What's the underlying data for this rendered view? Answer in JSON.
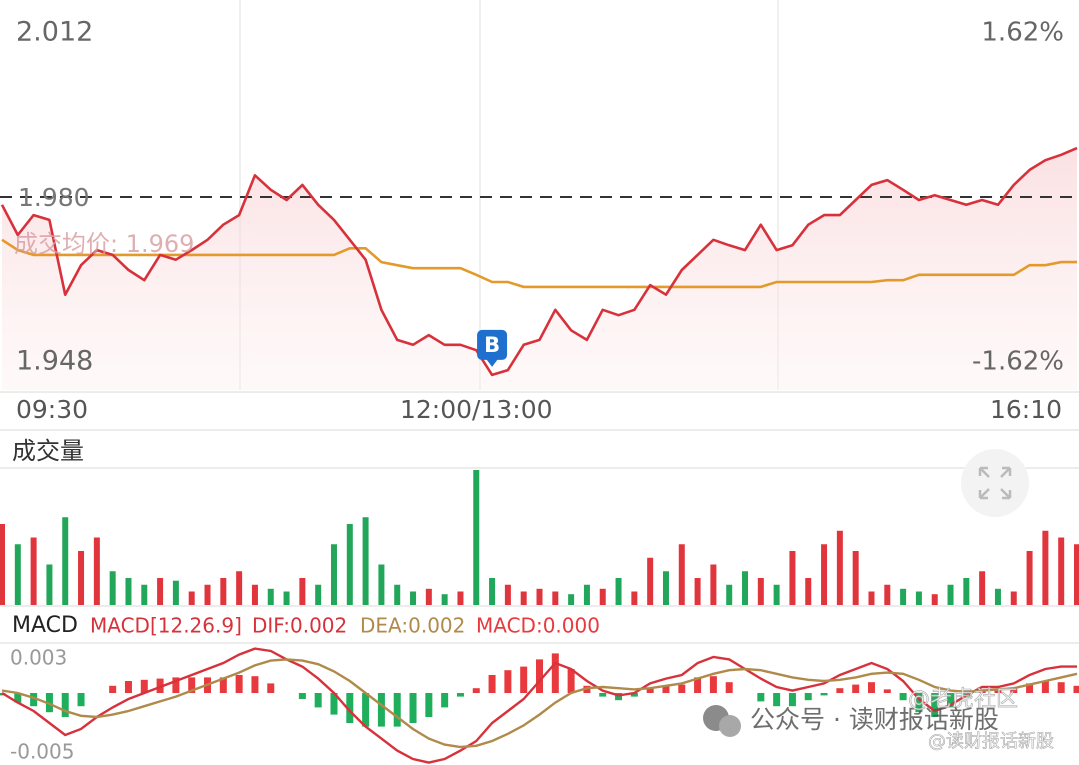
{
  "chart_data": [
    {
      "type": "line",
      "categories": [
        "09:30",
        null,
        null,
        null,
        null,
        null,
        null,
        null,
        null,
        null,
        null,
        null,
        null,
        null,
        null,
        null,
        null,
        null,
        null,
        null,
        null,
        null,
        null,
        null,
        null,
        null,
        null,
        null,
        null,
        null,
        "12:00/13:00",
        null,
        null,
        null,
        null,
        null,
        null,
        null,
        null,
        null,
        null,
        null,
        null,
        null,
        null,
        null,
        null,
        null,
        null,
        null,
        null,
        null,
        null,
        null,
        null,
        null,
        null,
        null,
        null,
        null,
        null,
        null,
        null,
        null,
        null,
        null,
        null,
        null,
        "16:10"
      ],
      "values": [
        1.9787,
        1.9737,
        1.977,
        1.9762,
        1.9638,
        1.9687,
        1.9712,
        1.9704,
        1.9679,
        1.9662,
        1.9704,
        1.9696,
        1.9712,
        1.9729,
        1.9754,
        1.977,
        1.9836,
        1.9812,
        1.9795,
        1.982,
        1.9787,
        1.9762,
        1.9729,
        1.9696,
        1.9613,
        1.9563,
        1.9555,
        1.9571,
        1.9555,
        1.9555,
        1.9546,
        1.9505,
        1.9513,
        1.9555,
        1.9563,
        1.9613,
        1.9579,
        1.9563,
        1.9613,
        1.9604,
        1.9613,
        1.9654,
        1.9638,
        1.9679,
        1.9704,
        1.9729,
        1.972,
        1.9712,
        1.9754,
        1.9712,
        1.972,
        1.9754,
        1.977,
        1.977,
        1.9795,
        1.982,
        1.9828,
        1.9812,
        1.9795,
        1.9803,
        1.9795,
        1.9787,
        1.9795,
        1.9787,
        1.982,
        1.9845,
        1.9861,
        1.987,
        1.9881
      ],
      "color": "#d7323b",
      "ylim": [
        1.948,
        2.012
      ],
      "yticks": [
        2.012,
        1.948
      ],
      "y2lim": [
        -1.62,
        1.62
      ],
      "y2ticks": [
        {
          "value": 1.62,
          "label": "1.62%"
        },
        {
          "value": -1.62,
          "label": "-1.62%"
        }
      ],
      "reference_line": {
        "value": 1.98,
        "label": "1.980"
      },
      "average": {
        "label": "成交均价: 1.969",
        "color": "#e49a2b",
        "values": [
          1.9729,
          1.9712,
          1.9704,
          1.9704,
          1.9704,
          1.9704,
          1.9704,
          1.9704,
          1.9704,
          1.9704,
          1.9704,
          1.9704,
          1.9704,
          1.9704,
          1.9704,
          1.9704,
          1.9704,
          1.9704,
          1.9704,
          1.9704,
          1.9704,
          1.9704,
          1.9715,
          1.9715,
          1.9692,
          1.9687,
          1.9682,
          1.9682,
          1.9682,
          1.9682,
          1.9671,
          1.9659,
          1.9659,
          1.9651,
          1.9651,
          1.9651,
          1.9651,
          1.9651,
          1.9651,
          1.9651,
          1.9651,
          1.9651,
          1.9651,
          1.9651,
          1.9651,
          1.9651,
          1.9651,
          1.9651,
          1.9651,
          1.9659,
          1.9659,
          1.9659,
          1.9659,
          1.9659,
          1.9659,
          1.9659,
          1.9662,
          1.9662,
          1.9671,
          1.9671,
          1.9671,
          1.9671,
          1.9671,
          1.9671,
          1.9671,
          1.9687,
          1.9687,
          1.9692,
          1.9692
        ]
      },
      "annotations": [
        {
          "text": "B",
          "index": 31
        }
      ]
    },
    {
      "type": "bar",
      "title": "成交量",
      "values": [
        60,
        45,
        50,
        30,
        65,
        40,
        50,
        25,
        20,
        15,
        20,
        18,
        10,
        15,
        20,
        25,
        15,
        12,
        10,
        20,
        15,
        45,
        60,
        65,
        30,
        15,
        10,
        12,
        8,
        10,
        100,
        20,
        15,
        10,
        12,
        10,
        8,
        15,
        12,
        20,
        10,
        35,
        25,
        45,
        20,
        30,
        15,
        25,
        20,
        15,
        40,
        20,
        45,
        55,
        40,
        10,
        15,
        12,
        10,
        8,
        15,
        20,
        25,
        12,
        10,
        40,
        55,
        50,
        45
      ],
      "ylim": [
        0,
        100
      ],
      "up_color": "#e0353c",
      "down_color": "#22a65a"
    },
    {
      "type": "macd",
      "title": "MACD",
      "subtitle": "MACD[12.26.9]",
      "ylim": [
        -0.006,
        0.004
      ],
      "yticks": [
        0.003,
        -0.005
      ],
      "series": [
        {
          "name": "DIF:0.002",
          "color": "#d7323b",
          "values": [
            0,
            -0.0008,
            -0.0015,
            -0.0025,
            -0.0035,
            -0.003,
            -0.002,
            -0.0012,
            -0.0005,
            0,
            0.0005,
            0.001,
            0.0015,
            0.002,
            0.0025,
            0.0032,
            0.0037,
            0.0035,
            0.0028,
            0.0022,
            0.0012,
            0,
            -0.0015,
            -0.0028,
            -0.0038,
            -0.0048,
            -0.0055,
            -0.0058,
            -0.0055,
            -0.0048,
            -0.004,
            -0.0025,
            -0.0015,
            -0.0005,
            0.001,
            0.0025,
            0.002,
            0.001,
            0.0002,
            -0.0002,
            0,
            0.0008,
            0.0012,
            0.0015,
            0.0025,
            0.003,
            0.0028,
            0.002,
            0.0012,
            0.0005,
            0.0002,
            0.0005,
            0.0008,
            0.0015,
            0.002,
            0.0025,
            0.002,
            0.001,
            -0.0005,
            -0.0015,
            -0.001,
            -0.0002,
            0.0005,
            0.0005,
            0.0008,
            0.0015,
            0.002,
            0.0022,
            0.0022
          ]
        },
        {
          "name": "DEA:0.002",
          "color": "#b08a4a",
          "values": [
            0.0002,
            0,
            -0.0004,
            -0.0009,
            -0.0015,
            -0.0019,
            -0.002,
            -0.0018,
            -0.0015,
            -0.0011,
            -0.0007,
            -0.0003,
            0.0002,
            0.0007,
            0.0012,
            0.0017,
            0.0023,
            0.0027,
            0.0028,
            0.0027,
            0.0024,
            0.0018,
            0.001,
            0,
            -0.001,
            -0.002,
            -0.003,
            -0.0038,
            -0.0043,
            -0.0045,
            -0.0044,
            -0.004,
            -0.0034,
            -0.0027,
            -0.0018,
            -0.0008,
            0,
            0.0004,
            0.0005,
            0.0004,
            0.0003,
            0.0004,
            0.0006,
            0.0008,
            0.0012,
            0.0016,
            0.0019,
            0.002,
            0.0019,
            0.0016,
            0.0013,
            0.0011,
            0.001,
            0.0011,
            0.0013,
            0.0016,
            0.0017,
            0.0016,
            0.0011,
            0.0005,
            0.0002,
            0.0001,
            0.0002,
            0.0003,
            0.0004,
            0.0007,
            0.001,
            0.0013,
            0.0016
          ]
        }
      ],
      "histogram": {
        "name": "MACD:0.000",
        "up_color": "#e8393e",
        "down_color": "#1fae5b",
        "values": [
          -0.0002,
          -0.0008,
          -0.0011,
          -0.0016,
          -0.002,
          -0.0011,
          0,
          0.0006,
          0.001,
          0.0011,
          0.0012,
          0.0013,
          0.0013,
          0.0013,
          0.0013,
          0.0015,
          0.0014,
          0.0008,
          0,
          -0.0005,
          -0.0012,
          -0.0018,
          -0.0025,
          -0.0028,
          -0.0028,
          -0.0028,
          -0.0025,
          -0.002,
          -0.0012,
          -0.0003,
          0.0004,
          0.0015,
          0.0019,
          0.0022,
          0.0028,
          0.0033,
          0.002,
          0.0006,
          -0.0003,
          -0.0006,
          -0.0003,
          0.0004,
          0.0006,
          0.0007,
          0.0013,
          0.0014,
          0.0009,
          0,
          -0.0007,
          -0.0011,
          -0.0011,
          -0.0006,
          -0.0002,
          0.0004,
          0.0007,
          0.0009,
          0.0003,
          -0.0006,
          -0.0016,
          -0.002,
          -0.0012,
          -0.0003,
          0.0003,
          0.0002,
          0.0004,
          0.0008,
          0.001,
          0.0009,
          0.0006
        ]
      }
    }
  ],
  "watermark": {
    "text": "公众号 · 读财报话新股",
    "handles": [
      "@老虎社区",
      "@读财报话新股"
    ]
  }
}
